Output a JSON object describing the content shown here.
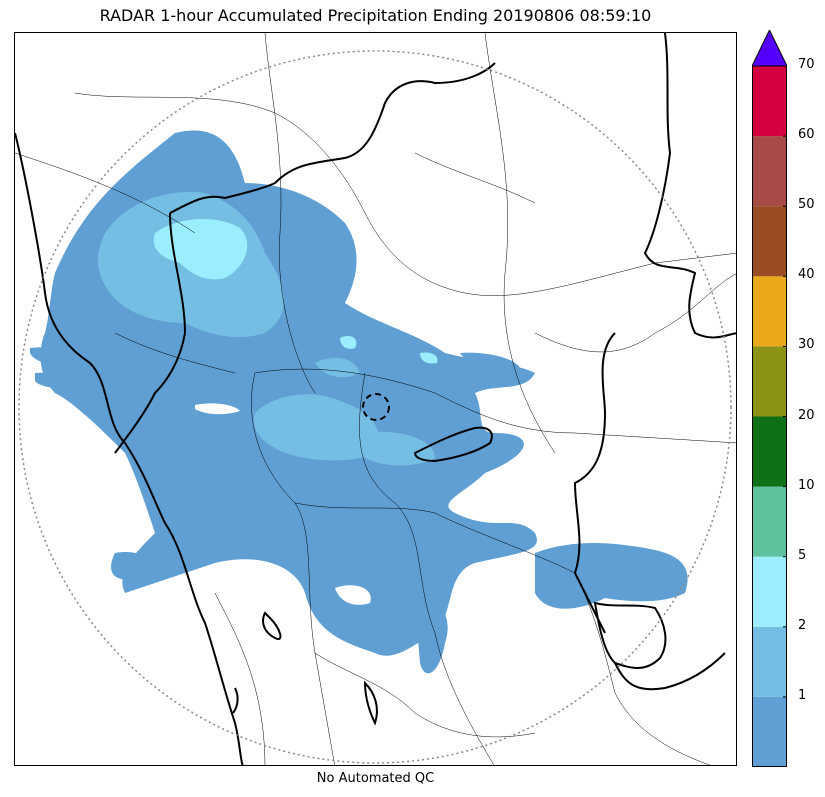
{
  "title": "RADAR 1-hour Accumulated Precipitation Ending 20190806 08:59:10",
  "footnote": "No Automated QC",
  "colorbar": {
    "colors": [
      "#5f9fd4",
      "#74bde3",
      "#9aeeff",
      "#5ec39c",
      "#0e7118",
      "#8b9215",
      "#e9a91a",
      "#9a4c24",
      "#a84a45",
      "#d5003f"
    ],
    "extend_color": "#5500ff",
    "levels": [
      0,
      1,
      2,
      5,
      10,
      20,
      30,
      40,
      50,
      60,
      70
    ],
    "ticks": [
      "1",
      "2",
      "5",
      "10",
      "20",
      "30",
      "40",
      "50",
      "60",
      "70"
    ]
  }
}
